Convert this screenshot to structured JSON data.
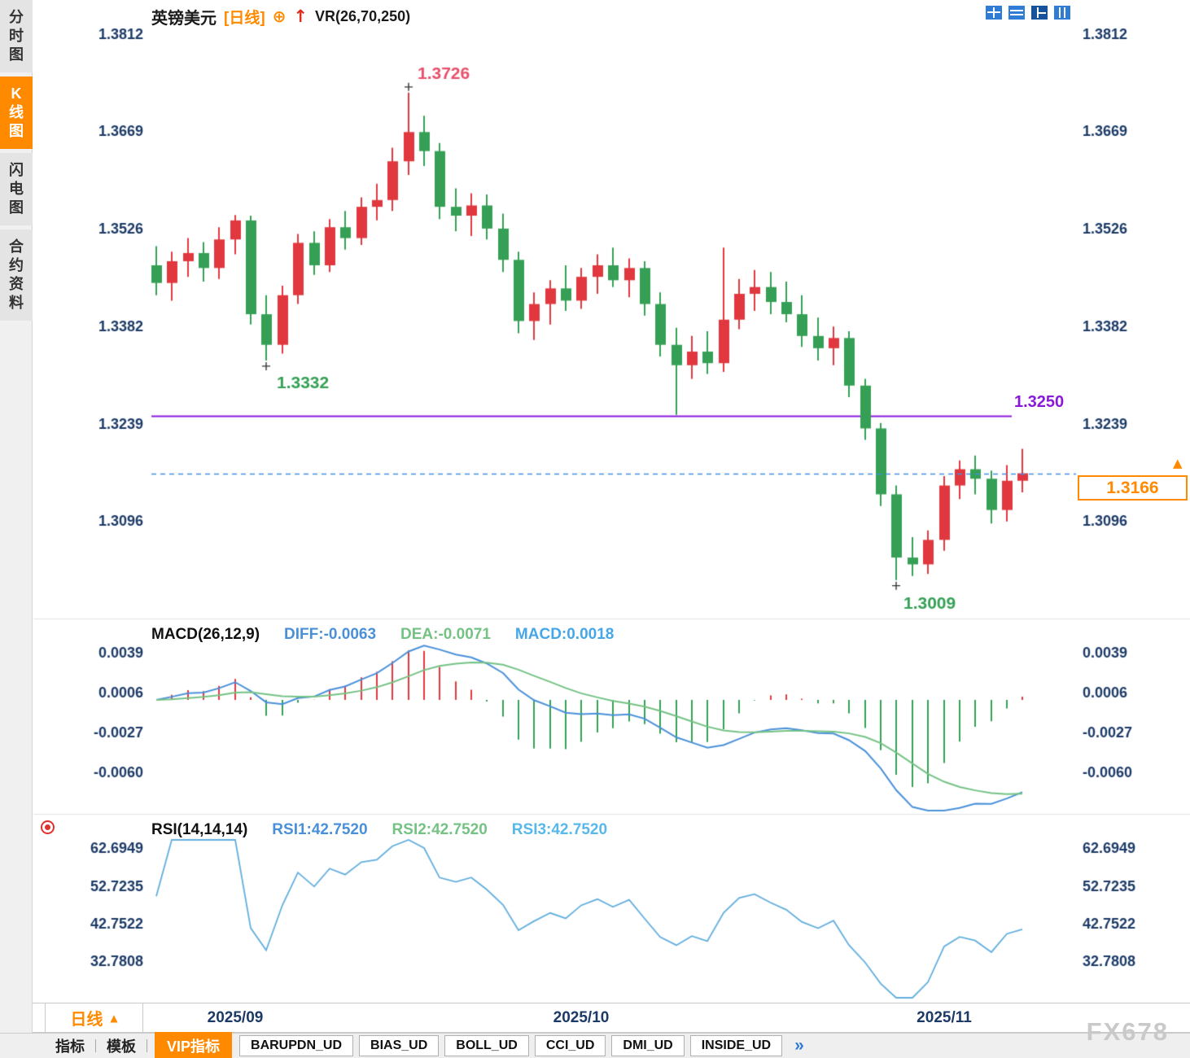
{
  "sidebar": {
    "tabs": [
      {
        "label": "分时图",
        "active": false
      },
      {
        "label": "K线图",
        "active": true
      },
      {
        "label": "闪电图",
        "active": false
      },
      {
        "label": "合约资料",
        "active": false
      }
    ]
  },
  "header": {
    "symbol": "英镑美元",
    "period": "[日线]",
    "plus": "⊕",
    "arrow": "↑",
    "indicator_label": "VR(26,70,250)"
  },
  "toolbar": {
    "layout_icons": [
      "quad-layout-icon",
      "rows-layout-icon",
      "split-layout-icon",
      "columns-layout-icon"
    ]
  },
  "macd_header": {
    "title": "MACD(26,12,9)",
    "diff_label": "DIFF:-0.0063",
    "dea_label": "DEA:-0.0071",
    "macd_label": "MACD:0.0018"
  },
  "rsi_header": {
    "title": "RSI(14,14,14)",
    "rsi1_label": "RSI1:42.7520",
    "rsi2_label": "RSI2:42.7520",
    "rsi3_label": "RSI3:42.7520"
  },
  "price_tag": {
    "value": "1.3166",
    "marker": "▲"
  },
  "period_selector": {
    "label": "日线",
    "arrow": "▲"
  },
  "bottom_bar": {
    "menu_tabs": [
      "指标",
      "模板"
    ],
    "vip_tab": "VIP指标",
    "indicator_tabs": [
      "BARUPDN_UD",
      "BIAS_UD",
      "BOLL_UD",
      "CCI_UD",
      "DMI_UD",
      "INSIDE_UD"
    ],
    "more_label": "»"
  },
  "watermark": "FX678",
  "colors": {
    "up": "#e0383e",
    "down": "#35a055",
    "axis": "#1c3a66",
    "purple": "#8a18d8",
    "dashed": "#3f8fe8",
    "diff": "#4a90d9",
    "dea": "#74c284",
    "rsi": "#62aede",
    "accent": "#ff8a00",
    "high_label": "#e8506a"
  },
  "chart_data": {
    "type": "candlestick",
    "title": "英镑美元 日线 (GBP/USD daily)",
    "overlay_indicator": "VR(26,70,250)",
    "price_range": [
      1.2958,
      1.3862
    ],
    "price_ticks": [
      1.3812,
      1.3669,
      1.3526,
      1.3382,
      1.3239,
      1.3096
    ],
    "x_ticks": [
      {
        "label": "2025/09",
        "index": 5
      },
      {
        "label": "2025/10",
        "index": 27
      },
      {
        "label": "2025/11",
        "index": 50
      }
    ],
    "candles": [
      [
        "2025-08-25",
        1.3472,
        1.35,
        1.3428,
        1.3446
      ],
      [
        "2025-08-26",
        1.3446,
        1.3492,
        1.342,
        1.3478
      ],
      [
        "2025-08-27",
        1.3478,
        1.3512,
        1.3455,
        1.349
      ],
      [
        "2025-08-28",
        1.349,
        1.3506,
        1.3448,
        1.3468
      ],
      [
        "2025-08-29",
        1.3468,
        1.3528,
        1.3452,
        1.351
      ],
      [
        "2025-09-01",
        1.351,
        1.3546,
        1.3488,
        1.3538
      ],
      [
        "2025-09-02",
        1.3538,
        1.3545,
        1.3385,
        1.34
      ],
      [
        "2025-09-03",
        1.34,
        1.3428,
        1.3332,
        1.3355
      ],
      [
        "2025-09-04",
        1.3355,
        1.3442,
        1.3342,
        1.3428
      ],
      [
        "2025-09-05",
        1.3428,
        1.3518,
        1.3415,
        1.3505
      ],
      [
        "2025-09-08",
        1.3505,
        1.3522,
        1.3458,
        1.3472
      ],
      [
        "2025-09-09",
        1.3472,
        1.354,
        1.3462,
        1.3528
      ],
      [
        "2025-09-10",
        1.3528,
        1.3552,
        1.3495,
        1.3512
      ],
      [
        "2025-09-11",
        1.3512,
        1.3572,
        1.3502,
        1.3558
      ],
      [
        "2025-09-12",
        1.3558,
        1.3592,
        1.3538,
        1.3568
      ],
      [
        "2025-09-15",
        1.3568,
        1.3645,
        1.3552,
        1.3625
      ],
      [
        "2025-09-16",
        1.3625,
        1.3726,
        1.3605,
        1.3668
      ],
      [
        "2025-09-17",
        1.3668,
        1.3692,
        1.3618,
        1.364
      ],
      [
        "2025-09-18",
        1.364,
        1.3652,
        1.354,
        1.3558
      ],
      [
        "2025-09-19",
        1.3558,
        1.3585,
        1.3522,
        1.3545
      ],
      [
        "2025-09-22",
        1.3545,
        1.3578,
        1.3515,
        1.356
      ],
      [
        "2025-09-23",
        1.356,
        1.3576,
        1.351,
        1.3526
      ],
      [
        "2025-09-24",
        1.3526,
        1.3548,
        1.3462,
        1.348
      ],
      [
        "2025-09-25",
        1.348,
        1.3492,
        1.3372,
        1.339
      ],
      [
        "2025-09-26",
        1.339,
        1.3432,
        1.3362,
        1.3415
      ],
      [
        "2025-09-29",
        1.3415,
        1.345,
        1.3385,
        1.3438
      ],
      [
        "2025-09-30",
        1.3438,
        1.3472,
        1.3405,
        1.342
      ],
      [
        "2025-10-01",
        1.342,
        1.3468,
        1.3408,
        1.3455
      ],
      [
        "2025-10-02",
        1.3455,
        1.3488,
        1.343,
        1.3472
      ],
      [
        "2025-10-03",
        1.3472,
        1.3498,
        1.344,
        1.345
      ],
      [
        "2025-10-06",
        1.345,
        1.3482,
        1.3425,
        1.3468
      ],
      [
        "2025-10-07",
        1.3468,
        1.3478,
        1.3398,
        1.3415
      ],
      [
        "2025-10-08",
        1.3415,
        1.3432,
        1.3338,
        1.3355
      ],
      [
        "2025-10-09",
        1.3355,
        1.338,
        1.3252,
        1.3325
      ],
      [
        "2025-10-10",
        1.3325,
        1.3368,
        1.3305,
        1.3345
      ],
      [
        "2025-10-13",
        1.3345,
        1.3375,
        1.3312,
        1.3328
      ],
      [
        "2025-10-14",
        1.3328,
        1.3498,
        1.3315,
        1.3392
      ],
      [
        "2025-10-15",
        1.3392,
        1.3452,
        1.3378,
        1.343
      ],
      [
        "2025-10-16",
        1.343,
        1.3465,
        1.3405,
        1.344
      ],
      [
        "2025-10-17",
        1.344,
        1.3462,
        1.34,
        1.3418
      ],
      [
        "2025-10-20",
        1.3418,
        1.3448,
        1.3388,
        1.34
      ],
      [
        "2025-10-21",
        1.34,
        1.3428,
        1.3352,
        1.3368
      ],
      [
        "2025-10-22",
        1.3368,
        1.3395,
        1.3332,
        1.335
      ],
      [
        "2025-10-23",
        1.335,
        1.3382,
        1.3325,
        1.3365
      ],
      [
        "2025-10-24",
        1.3365,
        1.3375,
        1.3278,
        1.3295
      ],
      [
        "2025-10-27",
        1.3295,
        1.3305,
        1.3215,
        1.3232
      ],
      [
        "2025-10-28",
        1.3232,
        1.324,
        1.3118,
        1.3135
      ],
      [
        "2025-10-29",
        1.3135,
        1.3148,
        1.3009,
        1.3042
      ],
      [
        "2025-10-30",
        1.3042,
        1.3072,
        1.3015,
        1.3032
      ],
      [
        "2025-10-31",
        1.3032,
        1.3082,
        1.3018,
        1.3068
      ],
      [
        "2025-11-03",
        1.3068,
        1.3162,
        1.3052,
        1.3148
      ],
      [
        "2025-11-04",
        1.3148,
        1.3185,
        1.3128,
        1.3172
      ],
      [
        "2025-11-05",
        1.3172,
        1.3192,
        1.3135,
        1.3158
      ],
      [
        "2025-11-06",
        1.3158,
        1.317,
        1.3092,
        1.3112
      ],
      [
        "2025-11-07",
        1.3112,
        1.3178,
        1.3095,
        1.3155
      ],
      [
        "2025-11-10",
        1.3155,
        1.3202,
        1.3138,
        1.3166
      ]
    ],
    "key_points": {
      "high": {
        "index": 16,
        "price": 1.3726,
        "label": "1.3726"
      },
      "swing_low": {
        "index": 7,
        "price": 1.3332,
        "label": "1.3332"
      },
      "low": {
        "index": 47,
        "price": 1.3009,
        "label": "1.3009"
      }
    },
    "horizontal_line": {
      "price": 1.325,
      "label": "1.3250"
    },
    "current_price": {
      "value": 1.3166,
      "label": "1.3166"
    },
    "macd": {
      "params": [
        26,
        12,
        9
      ],
      "diff": -0.0063,
      "dea": -0.0071,
      "macd": 0.0018,
      "ticks": [
        0.0039,
        0.0006,
        -0.0027,
        -0.006
      ]
    },
    "rsi": {
      "params": [
        14,
        14,
        14
      ],
      "rsi1": 42.752,
      "rsi2": 42.752,
      "rsi3": 42.752,
      "ticks": [
        62.6949,
        52.7235,
        42.7522,
        32.7808
      ]
    }
  }
}
